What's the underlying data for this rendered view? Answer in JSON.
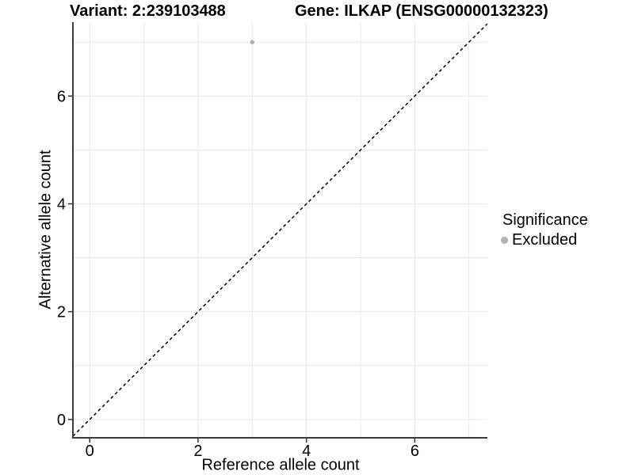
{
  "chart_data": {
    "type": "scatter",
    "titles": {
      "variant": "Variant: 2:239103488",
      "gene": "Gene: ILKAP (ENSG00000132323)"
    },
    "xlabel": "Reference allele count",
    "ylabel": "Alternative allele count",
    "xlim": [
      -0.31,
      7.34
    ],
    "ylim": [
      -0.34,
      7.37
    ],
    "xticks": [
      0,
      2,
      4,
      6
    ],
    "yticks": [
      0,
      2,
      4,
      6
    ],
    "grid_values": [
      0,
      1,
      2,
      3,
      4,
      5,
      6,
      7
    ],
    "grid": true,
    "identity_line": {
      "style": "dashed",
      "slope": 1,
      "intercept": 0
    },
    "series": [
      {
        "name": "Excluded",
        "color": "#b3b3b3",
        "points": [
          {
            "x": 3,
            "y": 7
          }
        ]
      }
    ],
    "legend": {
      "title": "Significance",
      "position": "right",
      "items": [
        {
          "label": "Excluded",
          "color": "#b3b3b3"
        }
      ]
    },
    "colors": {
      "grid": "#e8e8e8",
      "axis": "#3c3c3c",
      "tick": "#333333",
      "identity_line": "#000000",
      "point": "#b3b3b3",
      "text": "#000000"
    }
  }
}
